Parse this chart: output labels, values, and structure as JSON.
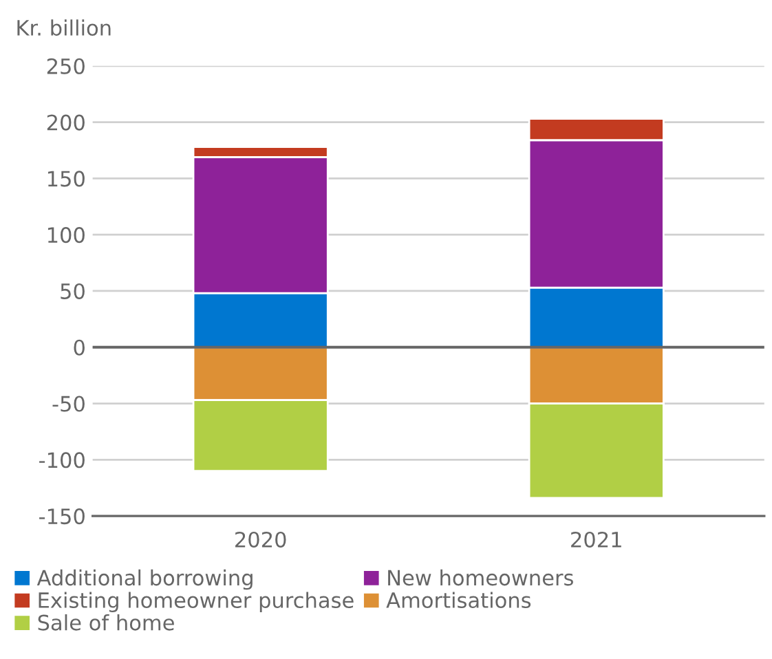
{
  "chart_data": {
    "type": "bar",
    "stacked": true,
    "ylabel": "Kr. billion",
    "categories": [
      "2020",
      "2021"
    ],
    "series": [
      {
        "name": "Additional borrowing",
        "color": "#0077d0",
        "values": [
          48,
          53
        ]
      },
      {
        "name": "New homeowners",
        "color": "#8e2299",
        "values": [
          121,
          131
        ]
      },
      {
        "name": "Existing homeowner purchase",
        "color": "#c33b20",
        "values": [
          9,
          19
        ]
      },
      {
        "name": "Amortisations",
        "color": "#dd9035",
        "values": [
          -47,
          -50
        ]
      },
      {
        "name": "Sale of home",
        "color": "#b1cf45",
        "values": [
          -63,
          -84
        ]
      }
    ],
    "ylim": [
      -150,
      250
    ],
    "yticks": [
      -150,
      -100,
      -50,
      0,
      50,
      100,
      150,
      200,
      250
    ],
    "grid": "y",
    "legend": "bottom"
  }
}
